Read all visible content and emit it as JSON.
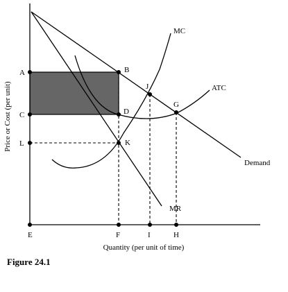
{
  "axes": {
    "y_title": "Price or Cost (per unit)",
    "x_title": "Quantity (per unit of time)"
  },
  "curves": {
    "mc": "MC",
    "atc": "ATC",
    "demand": "Demand",
    "mr": "MR"
  },
  "points": {
    "A": "A",
    "B": "B",
    "C": "C",
    "D": "D",
    "E": "E",
    "F": "F",
    "G": "G",
    "H": "H",
    "I": "I",
    "J": "J",
    "K": "K",
    "L": "L"
  },
  "caption": "Figure 24.1",
  "colors": {
    "shaded_area": "#666666",
    "line": "#000000"
  }
}
